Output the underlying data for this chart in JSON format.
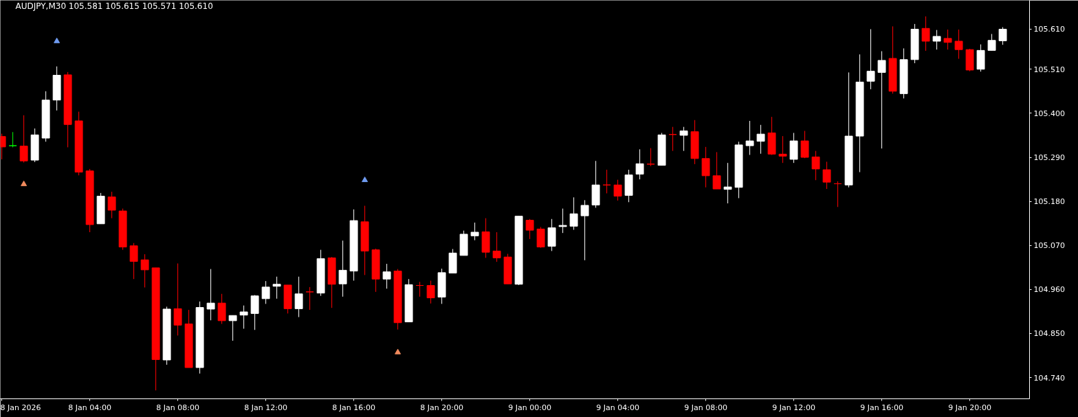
{
  "chart_data": {
    "type": "candlestick",
    "title": "AUDJPY,M30  105.581 105.615 105.571 105.610",
    "x": [
      "2026-01-08T00:00",
      "2026-01-08T00:30",
      "2026-01-08T01:00",
      "2026-01-08T01:30",
      "2026-01-08T02:00",
      "2026-01-08T02:30",
      "2026-01-08T03:00",
      "2026-01-08T03:30",
      "2026-01-08T04:00",
      "2026-01-08T04:30",
      "2026-01-08T05:00",
      "2026-01-08T05:30",
      "2026-01-08T06:00",
      "2026-01-08T06:30",
      "2026-01-08T07:00",
      "2026-01-08T07:30",
      "2026-01-08T08:00",
      "2026-01-08T08:30",
      "2026-01-08T09:00",
      "2026-01-08T09:30",
      "2026-01-08T10:00",
      "2026-01-08T10:30",
      "2026-01-08T11:00",
      "2026-01-08T11:30",
      "2026-01-08T12:00",
      "2026-01-08T12:30",
      "2026-01-08T13:00",
      "2026-01-08T13:30",
      "2026-01-08T14:00",
      "2026-01-08T14:30",
      "2026-01-08T15:00",
      "2026-01-08T15:30",
      "2026-01-08T16:00",
      "2026-01-08T16:30",
      "2026-01-08T17:00",
      "2026-01-08T17:30",
      "2026-01-08T18:00",
      "2026-01-08T18:30",
      "2026-01-08T19:00",
      "2026-01-08T19:30",
      "2026-01-08T20:00",
      "2026-01-08T20:30",
      "2026-01-08T21:00",
      "2026-01-08T21:30",
      "2026-01-08T22:00",
      "2026-01-08T22:30",
      "2026-01-08T23:00",
      "2026-01-08T23:30",
      "2026-01-09T00:00",
      "2026-01-09T00:30",
      "2026-01-09T01:00",
      "2026-01-09T01:30",
      "2026-01-09T02:00",
      "2026-01-09T02:30",
      "2026-01-09T03:00",
      "2026-01-09T03:30",
      "2026-01-09T04:00",
      "2026-01-09T04:30",
      "2026-01-09T05:00",
      "2026-01-09T05:30",
      "2026-01-09T06:00",
      "2026-01-09T06:30",
      "2026-01-09T07:00",
      "2026-01-09T07:30",
      "2026-01-09T08:00",
      "2026-01-09T08:30",
      "2026-01-09T09:00",
      "2026-01-09T09:30",
      "2026-01-09T10:00",
      "2026-01-09T10:30",
      "2026-01-09T11:00",
      "2026-01-09T11:30",
      "2026-01-09T12:00",
      "2026-01-09T12:30",
      "2026-01-09T13:00",
      "2026-01-09T13:30",
      "2026-01-09T14:00",
      "2026-01-09T14:30",
      "2026-01-09T15:00",
      "2026-01-09T15:30",
      "2026-01-09T16:00",
      "2026-01-09T16:30",
      "2026-01-09T17:00",
      "2026-01-09T17:30",
      "2026-01-09T18:00",
      "2026-01-09T18:30",
      "2026-01-09T19:00",
      "2026-01-09T19:30",
      "2026-01-09T20:00",
      "2026-01-09T20:30",
      "2026-01-09T21:00",
      "2026-01-09T21:30"
    ],
    "ohlc": [
      [
        105.342,
        105.349,
        105.285,
        105.316
      ],
      [
        105.319,
        105.353,
        105.315,
        105.319
      ],
      [
        105.318,
        105.395,
        105.277,
        105.281
      ],
      [
        105.283,
        105.362,
        105.278,
        105.346
      ],
      [
        105.338,
        105.455,
        105.329,
        105.433
      ],
      [
        105.433,
        105.517,
        105.407,
        105.495
      ],
      [
        105.496,
        105.503,
        105.315,
        105.372
      ],
      [
        105.381,
        105.404,
        105.245,
        105.253
      ],
      [
        105.256,
        105.261,
        105.103,
        105.122
      ],
      [
        105.124,
        105.201,
        105.124,
        105.193
      ],
      [
        105.191,
        105.204,
        105.138,
        105.158
      ],
      [
        105.156,
        105.162,
        105.059,
        105.066
      ],
      [
        105.069,
        105.076,
        104.986,
        105.03
      ],
      [
        105.034,
        105.048,
        104.965,
        105.009
      ],
      [
        105.014,
        105.014,
        104.708,
        104.785
      ],
      [
        104.784,
        104.917,
        104.772,
        104.911
      ],
      [
        104.912,
        105.025,
        104.845,
        104.871
      ],
      [
        104.874,
        104.909,
        104.765,
        104.765
      ],
      [
        104.765,
        104.93,
        104.75,
        104.915
      ],
      [
        104.911,
        105.011,
        104.883,
        104.926
      ],
      [
        104.926,
        104.949,
        104.874,
        104.882
      ],
      [
        104.882,
        104.895,
        104.832,
        104.895
      ],
      [
        104.896,
        104.92,
        104.862,
        104.904
      ],
      [
        104.9,
        104.946,
        104.859,
        104.944
      ],
      [
        104.937,
        104.981,
        104.924,
        104.966
      ],
      [
        104.968,
        104.992,
        104.937,
        104.973
      ],
      [
        104.971,
        104.971,
        104.9,
        104.912
      ],
      [
        104.912,
        104.992,
        104.891,
        104.949
      ],
      [
        104.954,
        104.966,
        104.909,
        104.954
      ],
      [
        104.951,
        105.059,
        104.944,
        105.037
      ],
      [
        105.039,
        105.041,
        104.914,
        104.973
      ],
      [
        104.974,
        105.082,
        104.942,
        105.008
      ],
      [
        105.006,
        105.16,
        104.982,
        105.132
      ],
      [
        105.129,
        105.169,
        104.996,
        105.056
      ],
      [
        105.059,
        105.062,
        104.954,
        104.986
      ],
      [
        104.986,
        105.024,
        104.962,
        105.004
      ],
      [
        105.006,
        105.011,
        104.86,
        104.877
      ],
      [
        104.879,
        104.986,
        104.879,
        104.972
      ],
      [
        104.97,
        104.979,
        104.942,
        104.97
      ],
      [
        104.97,
        104.982,
        104.925,
        104.939
      ],
      [
        104.941,
        105.012,
        104.924,
        105.002
      ],
      [
        105.001,
        105.061,
        105.001,
        105.051
      ],
      [
        105.045,
        105.107,
        105.045,
        105.098
      ],
      [
        105.094,
        105.127,
        105.083,
        105.103
      ],
      [
        105.104,
        105.138,
        105.039,
        105.053
      ],
      [
        105.056,
        105.103,
        105.029,
        105.039
      ],
      [
        105.041,
        105.049,
        104.974,
        104.974
      ],
      [
        104.973,
        105.143,
        104.971,
        105.143
      ],
      [
        105.133,
        105.136,
        105.086,
        105.108
      ],
      [
        105.111,
        105.116,
        105.064,
        105.066
      ],
      [
        105.068,
        105.136,
        105.056,
        105.114
      ],
      [
        105.117,
        105.162,
        105.101,
        105.12
      ],
      [
        105.118,
        105.19,
        105.109,
        105.149
      ],
      [
        105.144,
        105.183,
        105.033,
        105.17
      ],
      [
        105.171,
        105.281,
        105.164,
        105.221
      ],
      [
        105.221,
        105.259,
        105.2,
        105.221
      ],
      [
        105.221,
        105.234,
        105.182,
        105.193
      ],
      [
        105.195,
        105.259,
        105.178,
        105.246
      ],
      [
        105.248,
        105.31,
        105.235,
        105.274
      ],
      [
        105.273,
        105.313,
        105.268,
        105.273
      ],
      [
        105.27,
        105.351,
        105.27,
        105.346
      ],
      [
        105.347,
        105.366,
        105.306,
        105.347
      ],
      [
        105.345,
        105.366,
        105.306,
        105.356
      ],
      [
        105.354,
        105.383,
        105.273,
        105.287
      ],
      [
        105.287,
        105.316,
        105.215,
        105.244
      ],
      [
        105.244,
        105.303,
        105.211,
        105.211
      ],
      [
        105.21,
        105.276,
        105.175,
        105.216
      ],
      [
        105.215,
        105.329,
        105.188,
        105.321
      ],
      [
        105.319,
        105.381,
        105.296,
        105.331
      ],
      [
        105.33,
        105.371,
        105.299,
        105.348
      ],
      [
        105.351,
        105.391,
        105.296,
        105.298
      ],
      [
        105.298,
        105.343,
        105.276,
        105.293
      ],
      [
        105.285,
        105.351,
        105.276,
        105.331
      ],
      [
        105.331,
        105.356,
        105.288,
        105.29
      ],
      [
        105.291,
        105.306,
        105.233,
        105.261
      ],
      [
        105.259,
        105.279,
        105.211,
        105.228
      ],
      [
        105.224,
        105.23,
        105.166,
        105.224
      ],
      [
        105.221,
        105.502,
        105.215,
        105.343
      ],
      [
        105.343,
        105.547,
        105.253,
        105.478
      ],
      [
        105.48,
        105.61,
        105.46,
        105.505
      ],
      [
        105.502,
        105.555,
        105.312,
        105.532
      ],
      [
        105.537,
        105.617,
        105.449,
        105.455
      ],
      [
        105.449,
        105.562,
        105.437,
        105.534
      ],
      [
        105.534,
        105.623,
        105.525,
        105.61
      ],
      [
        105.612,
        105.642,
        105.556,
        105.58
      ],
      [
        105.58,
        105.608,
        105.559,
        105.592
      ],
      [
        105.587,
        105.609,
        105.559,
        105.577
      ],
      [
        105.58,
        105.609,
        105.536,
        105.559
      ],
      [
        105.559,
        105.561,
        105.505,
        105.508
      ],
      [
        105.51,
        105.572,
        105.504,
        105.557
      ],
      [
        105.557,
        105.598,
        105.557,
        105.582
      ],
      [
        105.581,
        105.615,
        105.571,
        105.61
      ]
    ],
    "colors": [
      "#ff0000",
      "#00ff00",
      "#ff0000",
      "#ffffff",
      "#ffffff",
      "#ffffff",
      "#ff0000",
      "#ff0000",
      "#ff0000",
      "#ffffff",
      "#ff0000",
      "#ff0000",
      "#ff0000",
      "#ff0000",
      "#ff0000",
      "#ffffff",
      "#ff0000",
      "#ff0000",
      "#ffffff",
      "#ffffff",
      "#ff0000",
      "#ffffff",
      "#ffffff",
      "#ffffff",
      "#ffffff",
      "#ffffff",
      "#ff0000",
      "#ffffff",
      "#ff0000",
      "#ffffff",
      "#ff0000",
      "#ffffff",
      "#ffffff",
      "#ff0000",
      "#ff0000",
      "#ffffff",
      "#ff0000",
      "#ffffff",
      "#ff0000",
      "#ff0000",
      "#ffffff",
      "#ffffff",
      "#ffffff",
      "#ffffff",
      "#ff0000",
      "#ff0000",
      "#ff0000",
      "#ffffff",
      "#ff0000",
      "#ff0000",
      "#ffffff",
      "#ffffff",
      "#ffffff",
      "#ffffff",
      "#ffffff",
      "#ff0000",
      "#ff0000",
      "#ffffff",
      "#ffffff",
      "#ff0000",
      "#ffffff",
      "#ff0000",
      "#ffffff",
      "#ff0000",
      "#ff0000",
      "#ff0000",
      "#ffffff",
      "#ffffff",
      "#ffffff",
      "#ffffff",
      "#ff0000",
      "#ff0000",
      "#ffffff",
      "#ff0000",
      "#ff0000",
      "#ff0000",
      "#ff0000",
      "#ffffff",
      "#ffffff",
      "#ffffff",
      "#ffffff",
      "#ff0000",
      "#ffffff",
      "#ffffff",
      "#ff0000",
      "#ffffff",
      "#ff0000",
      "#ff0000",
      "#ff0000",
      "#ffffff",
      "#ffffff",
      "#ffffff"
    ],
    "series": [
      {
        "type": "scatter",
        "color": "#6f9bf0",
        "x": [
          "2026-01-08T02:30",
          "2026-01-08T16:30"
        ],
        "values": [
          105.58,
          105.233
        ]
      },
      {
        "type": "scatter",
        "color": "#f08a5d",
        "x": [
          "2026-01-08T01:00",
          "2026-01-08T18:00"
        ],
        "values": [
          105.223,
          104.803
        ]
      }
    ],
    "marker": "triangle",
    "xlim": [
      "2026-01-07T23:56",
      "2026-01-09T22:43"
    ],
    "xticks": [
      {
        "value": "2026-01-08T00:00",
        "label": "8 Jan 2026"
      },
      {
        "value": "2026-01-08T04:00",
        "label": "8 Jan 04:00"
      },
      {
        "value": "2026-01-08T08:00",
        "label": "8 Jan 08:00"
      },
      {
        "value": "2026-01-08T12:00",
        "label": "8 Jan 12:00"
      },
      {
        "value": "2026-01-08T16:00",
        "label": "8 Jan 16:00"
      },
      {
        "value": "2026-01-08T20:00",
        "label": "8 Jan 20:00"
      },
      {
        "value": "2026-01-09T00:00",
        "label": "9 Jan 00:00"
      },
      {
        "value": "2026-01-09T04:00",
        "label": "9 Jan 04:00"
      },
      {
        "value": "2026-01-09T08:00",
        "label": "9 Jan 08:00"
      },
      {
        "value": "2026-01-09T12:00",
        "label": "9 Jan 12:00"
      },
      {
        "value": "2026-01-09T16:00",
        "label": "9 Jan 16:00"
      },
      {
        "value": "2026-01-09T20:00",
        "label": "9 Jan 20:00"
      }
    ],
    "ylim": [
      104.687,
      105.682
    ],
    "yticks": [
      {
        "value": 104.74,
        "label": "104.740"
      },
      {
        "value": 104.85,
        "label": "104.850"
      },
      {
        "value": 104.96,
        "label": "104.960"
      },
      {
        "value": 105.07,
        "label": "105.070"
      },
      {
        "value": 105.18,
        "label": "105.180"
      },
      {
        "value": 105.29,
        "label": "105.290"
      },
      {
        "value": 105.4,
        "label": "105.400"
      },
      {
        "value": 105.51,
        "label": "105.510"
      },
      {
        "value": 105.61,
        "label": "105.610"
      }
    ],
    "grid": false
  }
}
